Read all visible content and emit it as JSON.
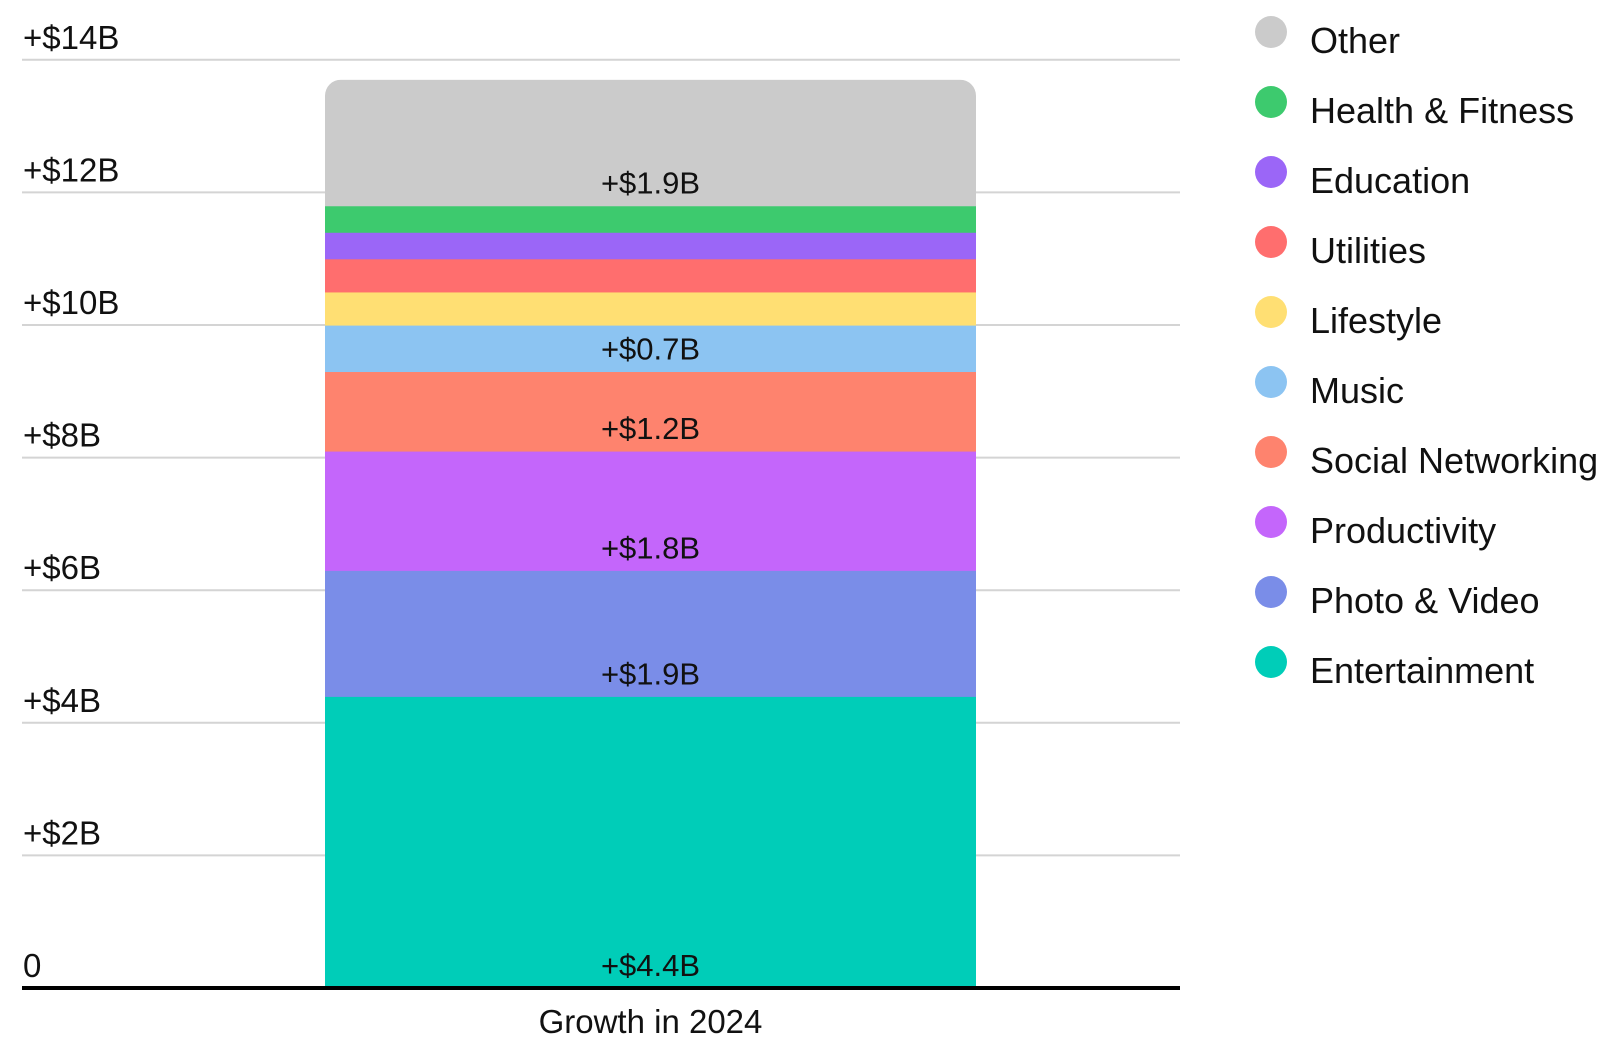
{
  "chart_data": {
    "type": "bar",
    "stacked": true,
    "categories": [
      "Growth in 2024"
    ],
    "series": [
      {
        "name": "Entertainment",
        "value": 4.4,
        "label": "+$4.4B",
        "color": "#00CDB8"
      },
      {
        "name": "Photo & Video",
        "value": 1.9,
        "label": "+$1.9B",
        "color": "#7A8DE8"
      },
      {
        "name": "Productivity",
        "value": 1.8,
        "label": "+$1.8B",
        "color": "#C466FB"
      },
      {
        "name": "Social Networking",
        "value": 1.2,
        "label": "+$1.2B",
        "color": "#FE836E"
      },
      {
        "name": "Music",
        "value": 0.7,
        "label": "+$0.7B",
        "color": "#8CC4F2"
      },
      {
        "name": "Lifestyle",
        "value": 0.5,
        "label": "",
        "color": "#FFDF73"
      },
      {
        "name": "Utilities",
        "value": 0.5,
        "label": "",
        "color": "#FF6E6E"
      },
      {
        "name": "Education",
        "value": 0.4,
        "label": "",
        "color": "#9B66F7"
      },
      {
        "name": "Health & Fitness",
        "value": 0.4,
        "label": "",
        "color": "#3DCA6E"
      },
      {
        "name": "Other",
        "value": 1.9,
        "label": "+$1.9B",
        "color": "#CBCBCB"
      }
    ],
    "legend_order": [
      "Other",
      "Health & Fitness",
      "Education",
      "Utilities",
      "Lifestyle",
      "Music",
      "Social Networking",
      "Productivity",
      "Photo & Video",
      "Entertainment"
    ],
    "y_ticks": [
      {
        "value": 0,
        "label": "0"
      },
      {
        "value": 2,
        "label": "+$2B"
      },
      {
        "value": 4,
        "label": "+$4B"
      },
      {
        "value": 6,
        "label": "+$6B"
      },
      {
        "value": 8,
        "label": "+$8B"
      },
      {
        "value": 10,
        "label": "+$10B"
      },
      {
        "value": 12,
        "label": "+$12B"
      },
      {
        "value": 14,
        "label": "+$14B"
      }
    ],
    "ylim": [
      0,
      14
    ],
    "xlabel": "Growth in 2024",
    "ylabel": "",
    "title": "",
    "grid": true,
    "legend_position": "right"
  }
}
